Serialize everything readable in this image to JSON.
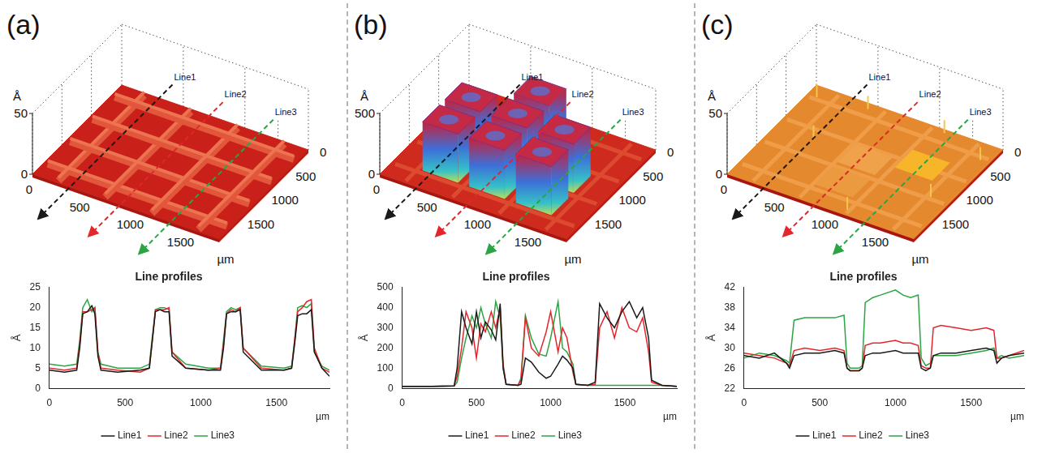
{
  "panels": [
    {
      "label": "(a)",
      "surface": {
        "z_label": "Å",
        "zlim": [
          0,
          50
        ],
        "zticks": [
          0,
          50
        ],
        "xticks": [
          0,
          500,
          1000,
          1500
        ],
        "yticks": [
          0,
          500,
          1000,
          1500
        ],
        "unit": "µm",
        "lines": [
          "Line1",
          "Line2",
          "Line3"
        ]
      }
    },
    {
      "label": "(b)",
      "surface": {
        "z_label": "Å",
        "zlim": [
          0,
          500
        ],
        "zticks": [
          0,
          500
        ],
        "xticks": [
          0,
          500,
          1000,
          1500
        ],
        "yticks": [
          0,
          500,
          1000,
          1500
        ],
        "unit": "µm",
        "lines": [
          "Line1",
          "Line2",
          "Line3"
        ]
      }
    },
    {
      "label": "(c)",
      "surface": {
        "z_label": "Å",
        "zlim": [
          0,
          50
        ],
        "zticks": [
          0,
          50
        ],
        "xticks": [
          0,
          500,
          1000,
          1500
        ],
        "yticks": [
          0,
          500,
          1000,
          1500
        ],
        "unit": "µm",
        "lines": [
          "Line1",
          "Line2",
          "Line3"
        ]
      }
    }
  ],
  "chart_data": [
    {
      "type": "line",
      "title": "Line profiles",
      "x_label": "µm",
      "y_label": "Å",
      "grid": false,
      "legend": "bottom",
      "xlim": [
        0,
        1850
      ],
      "xticks": [
        0,
        500,
        1000,
        1500
      ],
      "ylim": [
        0,
        25
      ],
      "yticks": [
        0,
        5,
        10,
        15,
        20,
        25
      ],
      "x": [
        0,
        100,
        180,
        200,
        220,
        250,
        280,
        300,
        320,
        340,
        450,
        600,
        660,
        680,
        700,
        730,
        760,
        790,
        810,
        900,
        1050,
        1130,
        1150,
        1170,
        1200,
        1230,
        1260,
        1280,
        1400,
        1550,
        1600,
        1620,
        1640,
        1670,
        1700,
        1730,
        1750,
        1800,
        1850
      ],
      "series": [
        {
          "name": "Line1",
          "color": "#1a1a1a",
          "values": [
            4.5,
            4,
            4.5,
            10,
            18.5,
            19,
            20.5,
            18.5,
            8,
            4.5,
            4,
            4.5,
            5,
            12,
            19,
            19.5,
            19,
            19,
            8,
            5,
            4.5,
            4.5,
            10,
            18.5,
            19,
            19,
            19.5,
            9,
            4.5,
            4.5,
            5,
            11,
            18,
            18.5,
            18.5,
            19.5,
            9,
            5,
            3
          ]
        },
        {
          "name": "Line2",
          "color": "#e3262b",
          "values": [
            5,
            4.5,
            5,
            11,
            19,
            19,
            19.5,
            20,
            9,
            5,
            4.5,
            4,
            5,
            12,
            19.5,
            19.5,
            19.5,
            20,
            9,
            5,
            4.5,
            5,
            11,
            18.5,
            19.5,
            19,
            20,
            10,
            5,
            4.5,
            5,
            12,
            19,
            20,
            21.5,
            22,
            10,
            5,
            4
          ]
        },
        {
          "name": "Line3",
          "color": "#2ca444",
          "values": [
            6,
            5.5,
            6,
            12,
            20,
            22,
            19,
            20,
            9,
            6,
            5,
            5,
            6,
            13,
            19.5,
            20,
            20,
            19.5,
            9,
            6,
            5,
            5,
            12,
            19,
            20,
            19.5,
            20,
            10,
            5.5,
            5,
            5.5,
            12,
            20,
            20.5,
            20,
            21,
            9,
            5.5,
            4.5
          ]
        }
      ]
    },
    {
      "type": "line",
      "title": "Line profiles",
      "x_label": "µm",
      "y_label": "Å",
      "grid": false,
      "legend": "bottom",
      "xlim": [
        0,
        1850
      ],
      "xticks": [
        0,
        500,
        1000,
        1500
      ],
      "ylim": [
        0,
        500
      ],
      "yticks": [
        0,
        100,
        200,
        300,
        400,
        500
      ],
      "x": [
        0,
        200,
        350,
        370,
        400,
        430,
        470,
        500,
        530,
        560,
        600,
        630,
        660,
        680,
        700,
        780,
        800,
        830,
        870,
        920,
        970,
        1000,
        1050,
        1080,
        1110,
        1150,
        1170,
        1250,
        1300,
        1330,
        1380,
        1430,
        1480,
        1530,
        1580,
        1620,
        1660,
        1680,
        1750,
        1850
      ],
      "series": [
        {
          "name": "Line1",
          "color": "#1a1a1a",
          "values": [
            10,
            10,
            12,
            100,
            380,
            300,
            220,
            380,
            250,
            330,
            290,
            240,
            420,
            100,
            20,
            15,
            20,
            150,
            130,
            80,
            50,
            60,
            120,
            160,
            140,
            100,
            20,
            15,
            30,
            420,
            350,
            300,
            380,
            430,
            350,
            400,
            250,
            40,
            15,
            10
          ]
        },
        {
          "name": "Line2",
          "color": "#e3262b",
          "values": [
            10,
            10,
            12,
            60,
            200,
            380,
            300,
            150,
            320,
            280,
            380,
            300,
            400,
            120,
            20,
            15,
            40,
            350,
            200,
            160,
            280,
            380,
            180,
            300,
            250,
            80,
            20,
            15,
            20,
            300,
            380,
            250,
            400,
            300,
            280,
            350,
            180,
            30,
            15,
            10
          ]
        },
        {
          "name": "Line3",
          "color": "#2ca444",
          "values": [
            10,
            10,
            12,
            30,
            150,
            250,
            360,
            300,
            400,
            320,
            250,
            430,
            350,
            100,
            20,
            15,
            50,
            360,
            250,
            170,
            160,
            250,
            430,
            200,
            180,
            120,
            20,
            15,
            15,
            15,
            15,
            15,
            15,
            15,
            15,
            15,
            15,
            15,
            15,
            10
          ]
        }
      ]
    },
    {
      "type": "line",
      "title": "Line profiles",
      "x_label": "µm",
      "y_label": "Å",
      "grid": false,
      "legend": "bottom",
      "xlim": [
        0,
        1850
      ],
      "xticks": [
        0,
        500,
        1000,
        1500
      ],
      "ylim": [
        22,
        42
      ],
      "yticks": [
        22,
        26,
        30,
        34,
        38,
        42
      ],
      "x": [
        0,
        100,
        200,
        280,
        300,
        330,
        400,
        500,
        600,
        660,
        680,
        700,
        760,
        780,
        800,
        850,
        900,
        1000,
        1050,
        1100,
        1150,
        1170,
        1200,
        1230,
        1250,
        1300,
        1400,
        1500,
        1600,
        1650,
        1670,
        1700,
        1750,
        1850
      ],
      "series": [
        {
          "name": "Line1",
          "color": "#1a1a1a",
          "values": [
            28.5,
            28,
            29,
            27,
            26,
            28.5,
            29,
            29,
            29.5,
            29,
            26,
            25.5,
            25.5,
            26,
            28.5,
            29,
            29,
            29.5,
            29,
            29,
            29,
            26,
            25.5,
            26,
            28.5,
            29,
            29,
            29.5,
            30,
            29.5,
            27,
            28,
            28.5,
            29
          ]
        },
        {
          "name": "Line2",
          "color": "#e3262b",
          "values": [
            29,
            28.5,
            28,
            27,
            26.5,
            29.5,
            30,
            29.5,
            30,
            29.5,
            26,
            25.5,
            25.5,
            26,
            30.5,
            31,
            31,
            31.5,
            31,
            31,
            30.5,
            26.5,
            26,
            26,
            34,
            34.5,
            34,
            33.5,
            34,
            33.5,
            28,
            28,
            28.5,
            29.5
          ]
        },
        {
          "name": "Line3",
          "color": "#2ca444",
          "values": [
            28,
            29,
            28.5,
            27.5,
            27,
            35.5,
            36,
            36,
            36,
            36.5,
            27,
            26,
            26,
            26.5,
            39,
            40,
            40.5,
            41.5,
            40.5,
            40,
            40.5,
            28,
            26.5,
            27,
            28.5,
            28.5,
            28.5,
            29,
            29.5,
            30,
            28,
            28.5,
            28,
            28.5
          ]
        }
      ]
    }
  ]
}
